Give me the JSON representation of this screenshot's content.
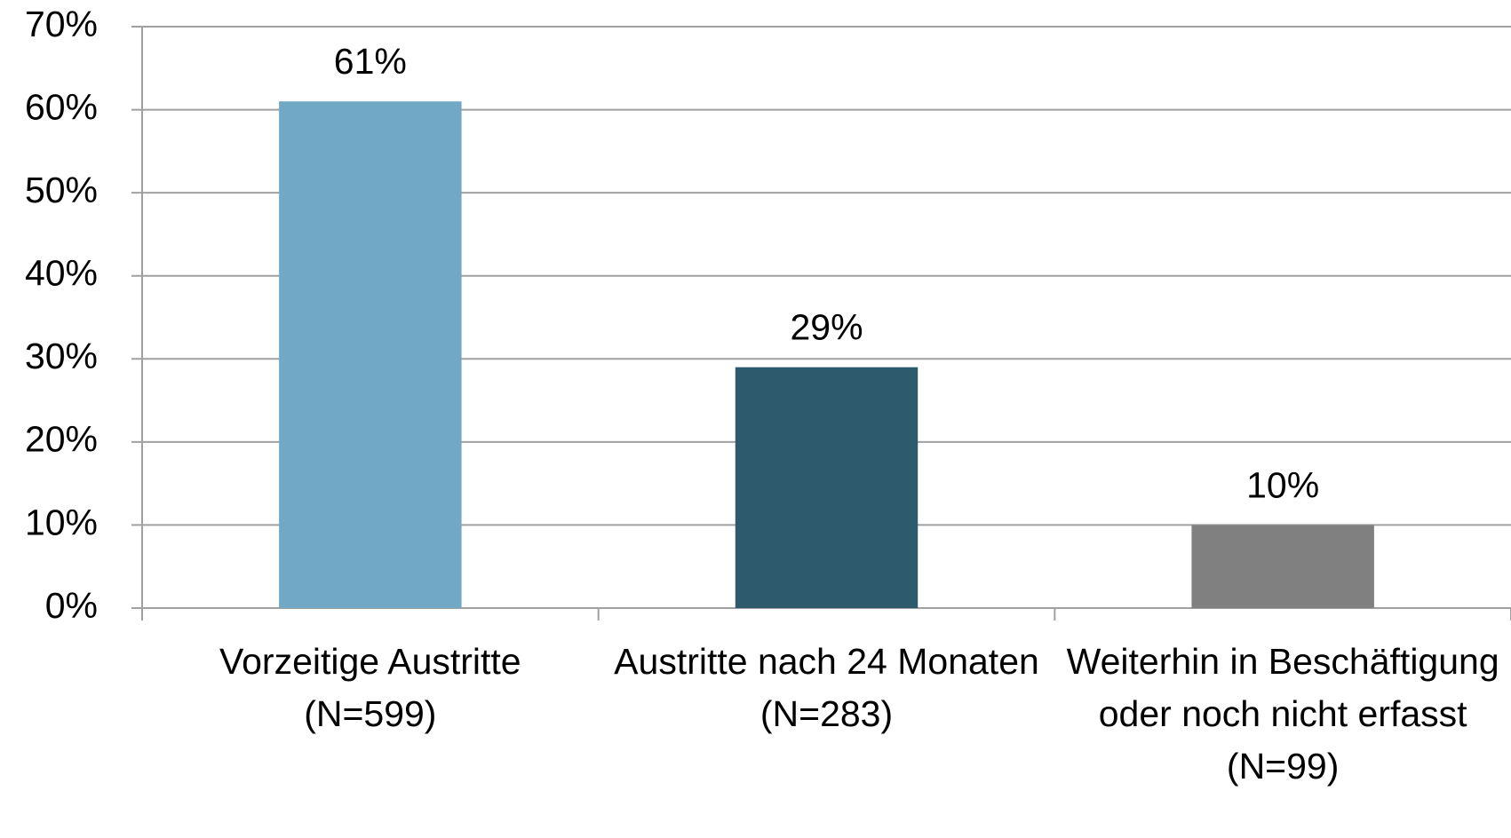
{
  "chart_data": {
    "type": "bar",
    "categories": [
      "Vorzeitige Austritte (N=599)",
      "Austritte nach 24 Monaten (N=283)",
      "Weiterhin in Beschäftigung oder noch nicht erfasst (N=99)"
    ],
    "values": [
      61,
      29,
      10
    ],
    "value_labels": [
      "61%",
      "29%",
      "10%"
    ],
    "colors": [
      "#70a8c5",
      "#2e5a6d",
      "#808080"
    ],
    "ylim": [
      0,
      70
    ],
    "yticks": [
      {
        "value": 0,
        "label": "0%"
      },
      {
        "value": 10,
        "label": "10%"
      },
      {
        "value": 20,
        "label": "20%"
      },
      {
        "value": 30,
        "label": "30%"
      },
      {
        "value": 40,
        "label": "40%"
      },
      {
        "value": 50,
        "label": "50%"
      },
      {
        "value": 60,
        "label": "60%"
      },
      {
        "value": 70,
        "label": "70%"
      }
    ],
    "grid": true
  }
}
